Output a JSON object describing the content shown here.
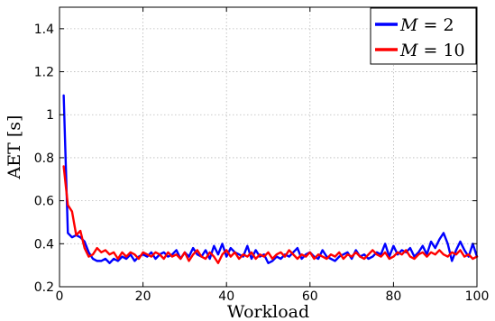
{
  "chart_data": {
    "type": "line",
    "xlabel": "Workload",
    "ylabel": "AET [s]",
    "xlim": [
      0,
      100
    ],
    "ylim": [
      0.2,
      1.5
    ],
    "xticks": [
      0,
      20,
      40,
      60,
      80,
      100
    ],
    "xtick_labels": [
      "0",
      "20",
      "40",
      "60",
      "80",
      "100"
    ],
    "yticks": [
      0.2,
      0.4,
      0.6,
      0.8,
      1.0,
      1.2,
      1.4
    ],
    "ytick_labels": [
      "0.2",
      "0.4",
      "0.6",
      "0.8",
      "1",
      "1.2",
      "1.4"
    ],
    "grid": true,
    "legend_position": "top-right",
    "series": [
      {
        "name": "M = 2",
        "legend_var": "M",
        "legend_val": "2",
        "color": "#0000ff",
        "x": [
          1,
          2,
          3,
          4,
          5,
          6,
          7,
          8,
          9,
          10,
          11,
          12,
          13,
          14,
          15,
          16,
          17,
          18,
          19,
          20,
          21,
          22,
          23,
          24,
          25,
          26,
          27,
          28,
          29,
          30,
          31,
          32,
          33,
          34,
          35,
          36,
          37,
          38,
          39,
          40,
          41,
          42,
          43,
          44,
          45,
          46,
          47,
          48,
          49,
          50,
          51,
          52,
          53,
          54,
          55,
          56,
          57,
          58,
          59,
          60,
          61,
          62,
          63,
          64,
          65,
          66,
          67,
          68,
          69,
          70,
          71,
          72,
          73,
          74,
          75,
          76,
          77,
          78,
          79,
          80,
          81,
          82,
          83,
          84,
          85,
          86,
          87,
          88,
          89,
          90,
          91,
          92,
          93,
          94,
          95,
          96,
          97,
          98,
          99,
          100
        ],
        "y": [
          1.09,
          0.45,
          0.43,
          0.44,
          0.43,
          0.41,
          0.36,
          0.33,
          0.32,
          0.32,
          0.33,
          0.31,
          0.33,
          0.32,
          0.34,
          0.33,
          0.35,
          0.32,
          0.34,
          0.35,
          0.34,
          0.36,
          0.33,
          0.35,
          0.36,
          0.34,
          0.35,
          0.37,
          0.33,
          0.36,
          0.34,
          0.38,
          0.35,
          0.34,
          0.37,
          0.33,
          0.39,
          0.35,
          0.4,
          0.34,
          0.38,
          0.36,
          0.35,
          0.34,
          0.39,
          0.33,
          0.37,
          0.34,
          0.35,
          0.31,
          0.32,
          0.34,
          0.33,
          0.35,
          0.34,
          0.36,
          0.38,
          0.33,
          0.35,
          0.36,
          0.34,
          0.33,
          0.37,
          0.34,
          0.33,
          0.32,
          0.34,
          0.35,
          0.36,
          0.33,
          0.37,
          0.34,
          0.35,
          0.33,
          0.34,
          0.36,
          0.35,
          0.4,
          0.34,
          0.39,
          0.35,
          0.37,
          0.36,
          0.38,
          0.34,
          0.36,
          0.39,
          0.35,
          0.41,
          0.38,
          0.42,
          0.45,
          0.4,
          0.32,
          0.37,
          0.41,
          0.37,
          0.34,
          0.4,
          0.34
        ]
      },
      {
        "name": "M = 10",
        "legend_var": "M",
        "legend_val": "10",
        "color": "#ff0000",
        "x": [
          1,
          2,
          3,
          4,
          5,
          6,
          7,
          8,
          9,
          10,
          11,
          12,
          13,
          14,
          15,
          16,
          17,
          18,
          19,
          20,
          21,
          22,
          23,
          24,
          25,
          26,
          27,
          28,
          29,
          30,
          31,
          32,
          33,
          34,
          35,
          36,
          37,
          38,
          39,
          40,
          41,
          42,
          43,
          44,
          45,
          46,
          47,
          48,
          49,
          50,
          51,
          52,
          53,
          54,
          55,
          56,
          57,
          58,
          59,
          60,
          61,
          62,
          63,
          64,
          65,
          66,
          67,
          68,
          69,
          70,
          71,
          72,
          73,
          74,
          75,
          76,
          77,
          78,
          79,
          80,
          81,
          82,
          83,
          84,
          85,
          86,
          87,
          88,
          89,
          90,
          91,
          92,
          93,
          94,
          95,
          96,
          97,
          98,
          99,
          100
        ],
        "y": [
          0.76,
          0.58,
          0.55,
          0.44,
          0.46,
          0.38,
          0.34,
          0.35,
          0.38,
          0.36,
          0.37,
          0.35,
          0.36,
          0.33,
          0.36,
          0.34,
          0.36,
          0.35,
          0.33,
          0.36,
          0.35,
          0.34,
          0.36,
          0.35,
          0.33,
          0.36,
          0.34,
          0.35,
          0.33,
          0.36,
          0.32,
          0.35,
          0.37,
          0.34,
          0.33,
          0.36,
          0.34,
          0.31,
          0.35,
          0.37,
          0.34,
          0.36,
          0.33,
          0.35,
          0.34,
          0.36,
          0.33,
          0.35,
          0.34,
          0.36,
          0.33,
          0.35,
          0.36,
          0.34,
          0.37,
          0.35,
          0.33,
          0.35,
          0.34,
          0.36,
          0.33,
          0.35,
          0.34,
          0.33,
          0.35,
          0.34,
          0.36,
          0.33,
          0.35,
          0.34,
          0.36,
          0.34,
          0.33,
          0.35,
          0.37,
          0.35,
          0.34,
          0.36,
          0.33,
          0.34,
          0.36,
          0.35,
          0.37,
          0.34,
          0.33,
          0.35,
          0.36,
          0.34,
          0.36,
          0.35,
          0.37,
          0.35,
          0.34,
          0.36,
          0.35,
          0.37,
          0.34,
          0.35,
          0.33,
          0.34
        ]
      }
    ]
  }
}
